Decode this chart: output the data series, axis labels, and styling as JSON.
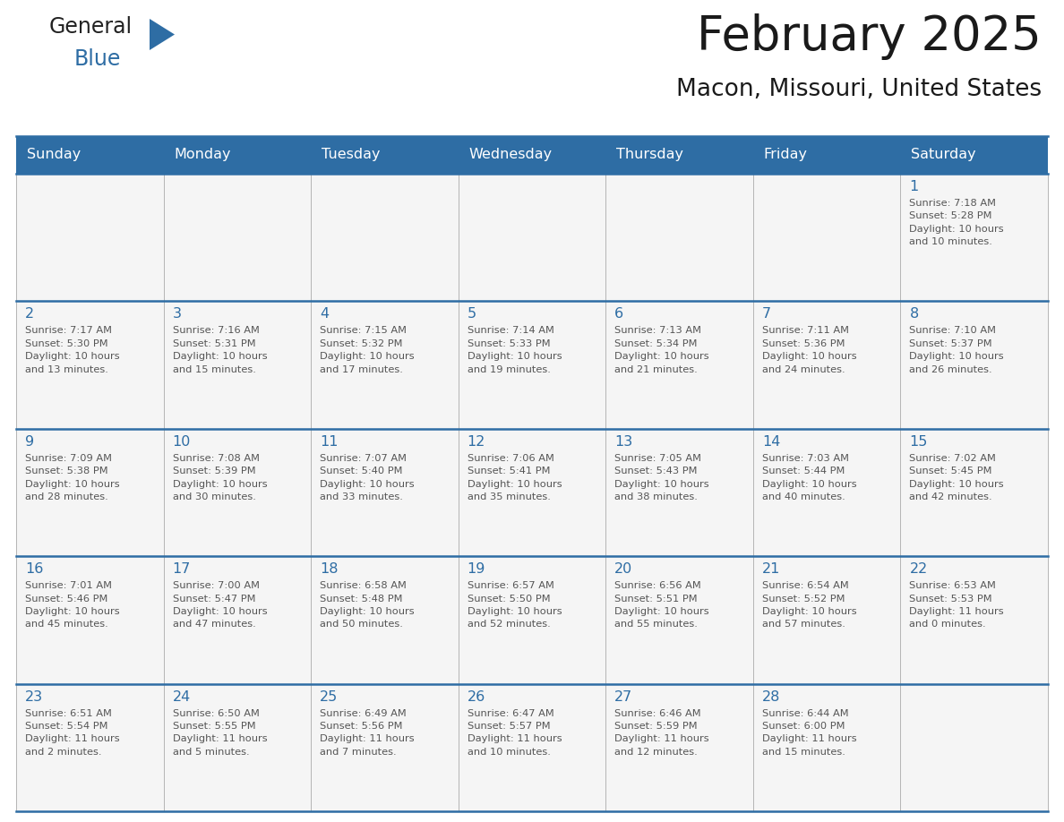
{
  "title": "February 2025",
  "subtitle": "Macon, Missouri, United States",
  "header_bg": "#2E6DA4",
  "header_text_color": "#FFFFFF",
  "cell_bg_light": "#F5F5F5",
  "day_number_color": "#2E6DA4",
  "detail_text_color": "#555555",
  "border_color": "#2E6DA4",
  "grid_line_color": "#AAAAAA",
  "days_of_week": [
    "Sunday",
    "Monday",
    "Tuesday",
    "Wednesday",
    "Thursday",
    "Friday",
    "Saturday"
  ],
  "weeks": [
    [
      {
        "day": "",
        "info": ""
      },
      {
        "day": "",
        "info": ""
      },
      {
        "day": "",
        "info": ""
      },
      {
        "day": "",
        "info": ""
      },
      {
        "day": "",
        "info": ""
      },
      {
        "day": "",
        "info": ""
      },
      {
        "day": "1",
        "info": "Sunrise: 7:18 AM\nSunset: 5:28 PM\nDaylight: 10 hours\nand 10 minutes."
      }
    ],
    [
      {
        "day": "2",
        "info": "Sunrise: 7:17 AM\nSunset: 5:30 PM\nDaylight: 10 hours\nand 13 minutes."
      },
      {
        "day": "3",
        "info": "Sunrise: 7:16 AM\nSunset: 5:31 PM\nDaylight: 10 hours\nand 15 minutes."
      },
      {
        "day": "4",
        "info": "Sunrise: 7:15 AM\nSunset: 5:32 PM\nDaylight: 10 hours\nand 17 minutes."
      },
      {
        "day": "5",
        "info": "Sunrise: 7:14 AM\nSunset: 5:33 PM\nDaylight: 10 hours\nand 19 minutes."
      },
      {
        "day": "6",
        "info": "Sunrise: 7:13 AM\nSunset: 5:34 PM\nDaylight: 10 hours\nand 21 minutes."
      },
      {
        "day": "7",
        "info": "Sunrise: 7:11 AM\nSunset: 5:36 PM\nDaylight: 10 hours\nand 24 minutes."
      },
      {
        "day": "8",
        "info": "Sunrise: 7:10 AM\nSunset: 5:37 PM\nDaylight: 10 hours\nand 26 minutes."
      }
    ],
    [
      {
        "day": "9",
        "info": "Sunrise: 7:09 AM\nSunset: 5:38 PM\nDaylight: 10 hours\nand 28 minutes."
      },
      {
        "day": "10",
        "info": "Sunrise: 7:08 AM\nSunset: 5:39 PM\nDaylight: 10 hours\nand 30 minutes."
      },
      {
        "day": "11",
        "info": "Sunrise: 7:07 AM\nSunset: 5:40 PM\nDaylight: 10 hours\nand 33 minutes."
      },
      {
        "day": "12",
        "info": "Sunrise: 7:06 AM\nSunset: 5:41 PM\nDaylight: 10 hours\nand 35 minutes."
      },
      {
        "day": "13",
        "info": "Sunrise: 7:05 AM\nSunset: 5:43 PM\nDaylight: 10 hours\nand 38 minutes."
      },
      {
        "day": "14",
        "info": "Sunrise: 7:03 AM\nSunset: 5:44 PM\nDaylight: 10 hours\nand 40 minutes."
      },
      {
        "day": "15",
        "info": "Sunrise: 7:02 AM\nSunset: 5:45 PM\nDaylight: 10 hours\nand 42 minutes."
      }
    ],
    [
      {
        "day": "16",
        "info": "Sunrise: 7:01 AM\nSunset: 5:46 PM\nDaylight: 10 hours\nand 45 minutes."
      },
      {
        "day": "17",
        "info": "Sunrise: 7:00 AM\nSunset: 5:47 PM\nDaylight: 10 hours\nand 47 minutes."
      },
      {
        "day": "18",
        "info": "Sunrise: 6:58 AM\nSunset: 5:48 PM\nDaylight: 10 hours\nand 50 minutes."
      },
      {
        "day": "19",
        "info": "Sunrise: 6:57 AM\nSunset: 5:50 PM\nDaylight: 10 hours\nand 52 minutes."
      },
      {
        "day": "20",
        "info": "Sunrise: 6:56 AM\nSunset: 5:51 PM\nDaylight: 10 hours\nand 55 minutes."
      },
      {
        "day": "21",
        "info": "Sunrise: 6:54 AM\nSunset: 5:52 PM\nDaylight: 10 hours\nand 57 minutes."
      },
      {
        "day": "22",
        "info": "Sunrise: 6:53 AM\nSunset: 5:53 PM\nDaylight: 11 hours\nand 0 minutes."
      }
    ],
    [
      {
        "day": "23",
        "info": "Sunrise: 6:51 AM\nSunset: 5:54 PM\nDaylight: 11 hours\nand 2 minutes."
      },
      {
        "day": "24",
        "info": "Sunrise: 6:50 AM\nSunset: 5:55 PM\nDaylight: 11 hours\nand 5 minutes."
      },
      {
        "day": "25",
        "info": "Sunrise: 6:49 AM\nSunset: 5:56 PM\nDaylight: 11 hours\nand 7 minutes."
      },
      {
        "day": "26",
        "info": "Sunrise: 6:47 AM\nSunset: 5:57 PM\nDaylight: 11 hours\nand 10 minutes."
      },
      {
        "day": "27",
        "info": "Sunrise: 6:46 AM\nSunset: 5:59 PM\nDaylight: 11 hours\nand 12 minutes."
      },
      {
        "day": "28",
        "info": "Sunrise: 6:44 AM\nSunset: 6:00 PM\nDaylight: 11 hours\nand 15 minutes."
      },
      {
        "day": "",
        "info": ""
      }
    ]
  ],
  "logo_text_general": "General",
  "logo_text_blue": "Blue",
  "logo_color_general": "#222222",
  "logo_color_blue": "#2E6DA4",
  "logo_triangle_color": "#2E6DA4",
  "fig_width": 11.88,
  "fig_height": 9.18,
  "dpi": 100
}
